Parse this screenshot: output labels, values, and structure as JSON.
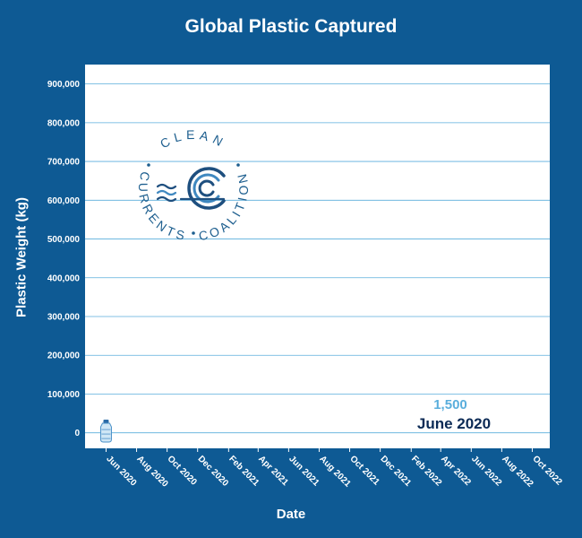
{
  "chart_data": {
    "type": "line",
    "title": "Global Plastic Captured",
    "xlabel": "Date",
    "ylabel": "Plastic Weight (kg)",
    "ylim": [
      -40000,
      950000
    ],
    "y_ticks": [
      0,
      100000,
      200000,
      300000,
      400000,
      500000,
      600000,
      700000,
      800000,
      900000
    ],
    "y_tick_labels": [
      "0",
      "100,000",
      "200,000",
      "300,000",
      "400,000",
      "500,000",
      "600,000",
      "700,000",
      "800,000",
      "900,000"
    ],
    "x_ticks": [
      "2020-06",
      "2020-08",
      "2020-10",
      "2020-12",
      "2021-02",
      "2021-04",
      "2021-06",
      "2021-08",
      "2021-10",
      "2021-12",
      "2022-02",
      "2022-04",
      "2022-06",
      "2022-08",
      "2022-10"
    ],
    "x_tick_labels": [
      "Jun 2020",
      "Aug 2020",
      "Oct 2020",
      "Dec 2020",
      "Feb 2021",
      "Apr 2021",
      "Jun 2021",
      "Aug 2021",
      "Oct 2021",
      "Dec 2021",
      "Feb 2022",
      "Apr 2022",
      "Jun 2022",
      "Aug 2022",
      "Oct 2022"
    ],
    "xlim": [
      "2020-04-20",
      "2022-11-05"
    ],
    "grid": true,
    "series": [
      {
        "x": [
          "2020-06-01"
        ],
        "y": [
          1500
        ]
      }
    ],
    "current_value_label": "1,500",
    "current_date_label": "June 2020",
    "marker_icon": "water-bottle-icon"
  },
  "logo": {
    "top_text": "CLEAN",
    "left_text": "CURRENTS",
    "right_text": "COALITION",
    "icon": "wave-logo-icon"
  },
  "colors": {
    "background": "#0e5a94",
    "plot_area": "#ffffff",
    "gridline": "#5aaedc",
    "value_label": "#5aaedc",
    "date_label": "#0b2a55",
    "logo": "#1e5f8f"
  }
}
